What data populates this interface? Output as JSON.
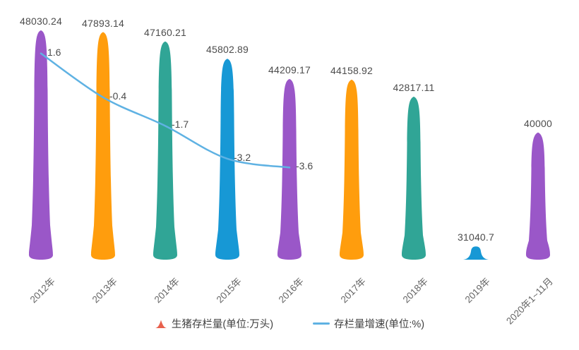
{
  "chart_data": {
    "type": "bar",
    "subtype": "pictorial-teardrop-bars-with-line",
    "categories": [
      "2012年",
      "2013年",
      "2014年",
      "2015年",
      "2016年",
      "2017年",
      "2018年",
      "2019年",
      "2020年1~11月"
    ],
    "series": [
      {
        "name": "生猪存栏量(单位:万头)",
        "type": "pictorial-bar",
        "values": [
          48030.24,
          47893.14,
          47160.21,
          45802.89,
          44209.17,
          44158.92,
          42817.11,
          31040.7,
          40000
        ],
        "labels": [
          "48030.24",
          "47893.14",
          "47160.21",
          "45802.89",
          "44209.17",
          "44158.92",
          "42817.11",
          "31040.7",
          "40000"
        ],
        "colors": [
          "#9a57c8",
          "#ff9d0d",
          "#30a596",
          "#1798d5",
          "#9a57c8",
          "#ff9d0d",
          "#30a596",
          "#1798d5",
          "#9a57c8"
        ]
      },
      {
        "name": "存栏量增速(单位:%)",
        "type": "line",
        "values": [
          1.6,
          -0.4,
          -1.7,
          -3.2,
          -3.6
        ],
        "labels": [
          "1.6",
          "-0.4",
          "-1.7",
          "-3.2",
          "-3.6"
        ],
        "color": "#5fb2e3"
      }
    ],
    "ylim_left": [
      30000,
      48200
    ],
    "ylim_right": [
      -7.8,
      2.75
    ],
    "grid": false,
    "legend_position": "bottom"
  },
  "legend": {
    "items": [
      {
        "label": "生猪存栏量(单位:万头)",
        "icon": "mountain-icon",
        "color": "#e8604c"
      },
      {
        "label": "存栏量增速(单位:%)",
        "icon": "line-icon",
        "color": "#5fb2e3"
      }
    ]
  },
  "styles": {
    "background": "#ffffff",
    "value_label_color": "#4c4c4c",
    "axis_label_color": "#666666",
    "legend_text_color": "#404040"
  }
}
